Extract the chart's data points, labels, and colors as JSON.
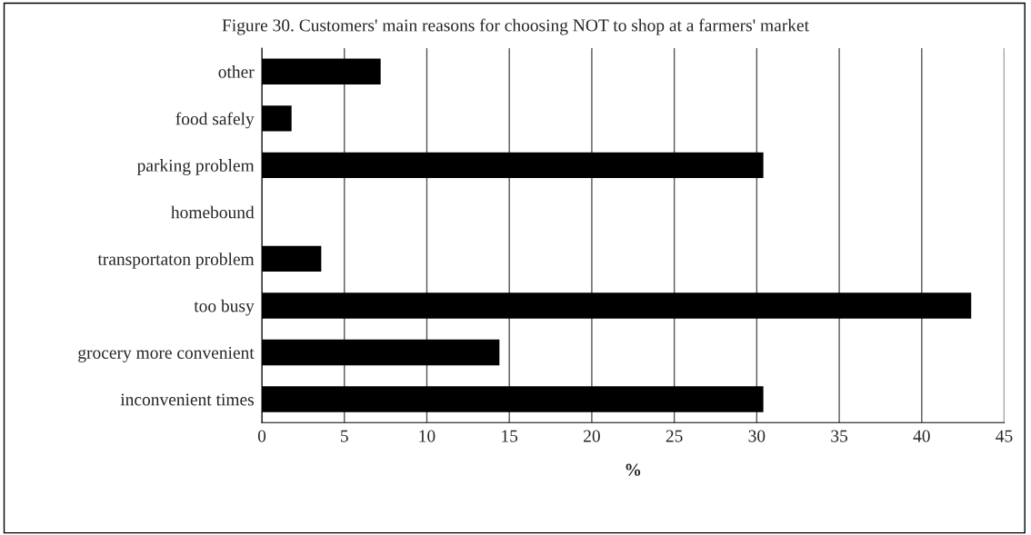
{
  "chart_data": {
    "type": "bar",
    "orientation": "horizontal",
    "title": "Figure 30. Customers' main reasons for choosing NOT to shop at a farmers' market",
    "xlabel": "%",
    "categories": [
      "other",
      "food safely",
      "parking problem",
      "homebound",
      "transportaton problem",
      "too busy",
      "grocery more convenient",
      "inconvenient times"
    ],
    "values": [
      7.2,
      1.8,
      30.4,
      0,
      3.6,
      43,
      14.4,
      30.4
    ],
    "color": "#000000",
    "xlim": [
      0,
      45
    ],
    "xticks": [
      0,
      5,
      10,
      15,
      20,
      25,
      30,
      35,
      40,
      45
    ],
    "grid": "x"
  }
}
